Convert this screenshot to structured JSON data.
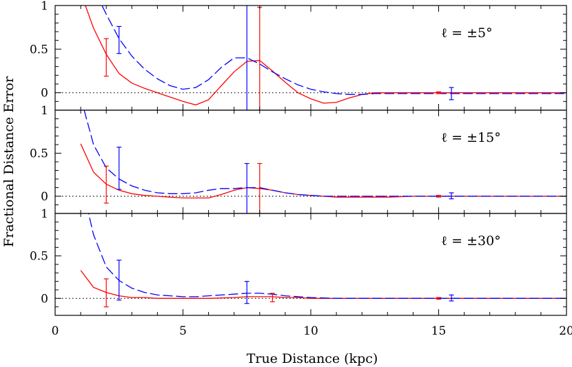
{
  "chart_data": {
    "type": "line",
    "xlabel": "True Distance (kpc)",
    "ylabel": "Fractional Distance Error",
    "xlim": [
      0,
      20
    ],
    "xticks": [
      0,
      5,
      10,
      15,
      20
    ],
    "ylim": [
      -0.2,
      1.0
    ],
    "yticks": [
      0,
      0.5,
      1
    ],
    "grid": false,
    "panels": [
      {
        "label": "ℓ = ±5°",
        "series": [
          {
            "color": "#ff0000",
            "style": "solid",
            "x": [
              1.0,
              1.5,
              2.0,
              2.5,
              3.0,
              3.5,
              4.0,
              4.5,
              5.0,
              5.5,
              6.0,
              6.5,
              7.0,
              7.5,
              8.0,
              8.5,
              9.0,
              9.5,
              10.0,
              10.5,
              11.0,
              11.5,
              12.0,
              12.5,
              13.0,
              14.0,
              15.0,
              16.0,
              17.0,
              18.0,
              19.0,
              20.0
            ],
            "y": [
              1.15,
              0.74,
              0.44,
              0.22,
              0.11,
              0.05,
              0.0,
              -0.05,
              -0.1,
              -0.14,
              -0.08,
              0.08,
              0.24,
              0.36,
              0.37,
              0.25,
              0.12,
              0.0,
              -0.07,
              -0.12,
              -0.11,
              -0.06,
              -0.02,
              0.0,
              0.0,
              0.0,
              0.0,
              0.0,
              0.0,
              0.0,
              0.0,
              0.0
            ]
          },
          {
            "color": "#0000ff",
            "style": "dashed",
            "x": [
              1.0,
              1.5,
              2.0,
              2.5,
              3.0,
              3.5,
              4.0,
              4.5,
              5.0,
              5.5,
              6.0,
              6.5,
              7.0,
              7.5,
              8.0,
              8.5,
              9.0,
              9.5,
              10.0,
              10.5,
              11.0,
              11.5,
              12.0,
              12.5,
              13.0,
              14.0,
              15.0,
              16.0,
              17.0,
              18.0,
              19.0,
              20.0
            ],
            "y": [
              1.7,
              1.2,
              0.9,
              0.62,
              0.42,
              0.27,
              0.16,
              0.08,
              0.04,
              0.06,
              0.15,
              0.29,
              0.4,
              0.4,
              0.33,
              0.24,
              0.16,
              0.09,
              0.04,
              0.01,
              -0.01,
              -0.02,
              -0.02,
              -0.01,
              -0.01,
              -0.01,
              -0.01,
              -0.01,
              -0.01,
              -0.01,
              -0.01,
              -0.01
            ]
          }
        ],
        "error_bars": [
          {
            "color": "#ff0000",
            "x": 2.0,
            "y": 0.41,
            "low": 0.19,
            "high": 0.62
          },
          {
            "color": "#0000ff",
            "x": 2.5,
            "y": 0.62,
            "low": 0.45,
            "high": 0.76
          },
          {
            "color": "#0000ff",
            "x": 7.5,
            "y": 0.4,
            "low": -0.2,
            "high": 1.0
          },
          {
            "color": "#ff0000",
            "x": 8.0,
            "y": 0.37,
            "low": -0.2,
            "high": 0.98
          },
          {
            "color": "#ff0000",
            "x": 15.0,
            "y": 0.0,
            "low": -0.01,
            "high": 0.01
          },
          {
            "color": "#0000ff",
            "x": 15.5,
            "y": -0.01,
            "low": -0.08,
            "high": 0.06
          }
        ]
      },
      {
        "label": "ℓ = ±15°",
        "series": [
          {
            "color": "#ff0000",
            "style": "solid",
            "x": [
              1.0,
              1.5,
              2.0,
              2.5,
              3.0,
              3.5,
              4.0,
              4.5,
              5.0,
              5.5,
              6.0,
              6.5,
              7.0,
              7.5,
              8.0,
              8.5,
              9.0,
              9.5,
              10.0,
              10.5,
              11.0,
              12.0,
              13.0,
              14.0,
              15.0,
              16.0,
              17.0,
              18.0,
              19.0,
              20.0
            ],
            "y": [
              0.61,
              0.28,
              0.14,
              0.07,
              0.03,
              0.01,
              0.0,
              -0.01,
              -0.02,
              -0.02,
              -0.02,
              0.02,
              0.07,
              0.1,
              0.09,
              0.07,
              0.04,
              0.02,
              0.01,
              0.0,
              -0.01,
              -0.01,
              -0.01,
              0.0,
              0.0,
              0.0,
              0.0,
              0.0,
              0.0,
              0.0
            ]
          },
          {
            "color": "#0000ff",
            "style": "dashed",
            "x": [
              1.0,
              1.5,
              2.0,
              2.5,
              3.0,
              3.5,
              4.0,
              4.5,
              5.0,
              5.5,
              6.0,
              6.5,
              7.0,
              7.5,
              8.0,
              8.5,
              9.0,
              9.5,
              10.0,
              10.5,
              11.0,
              12.0,
              13.0,
              14.0,
              15.0,
              16.0,
              17.0,
              18.0,
              19.0,
              20.0
            ],
            "y": [
              1.15,
              0.6,
              0.33,
              0.2,
              0.12,
              0.07,
              0.04,
              0.03,
              0.03,
              0.04,
              0.07,
              0.09,
              0.09,
              0.1,
              0.1,
              0.07,
              0.04,
              0.02,
              0.01,
              0.0,
              0.0,
              0.0,
              0.0,
              0.0,
              0.0,
              0.0,
              0.0,
              0.0,
              0.0,
              0.0
            ]
          }
        ],
        "error_bars": [
          {
            "color": "#ff0000",
            "x": 2.0,
            "y": 0.13,
            "low": -0.08,
            "high": 0.35
          },
          {
            "color": "#0000ff",
            "x": 2.5,
            "y": 0.32,
            "low": 0.08,
            "high": 0.57
          },
          {
            "color": "#0000ff",
            "x": 7.5,
            "y": 0.1,
            "low": -0.2,
            "high": 0.38
          },
          {
            "color": "#ff0000",
            "x": 8.0,
            "y": 0.09,
            "low": -0.2,
            "high": 0.38
          },
          {
            "color": "#ff0000",
            "x": 15.0,
            "y": 0.0,
            "low": -0.01,
            "high": 0.01
          },
          {
            "color": "#0000ff",
            "x": 15.5,
            "y": 0.0,
            "low": -0.03,
            "high": 0.04
          }
        ]
      },
      {
        "label": "ℓ = ±30°",
        "series": [
          {
            "color": "#ff0000",
            "style": "solid",
            "x": [
              1.0,
              1.5,
              2.0,
              2.5,
              3.0,
              3.5,
              4.0,
              4.5,
              5.0,
              6.0,
              7.0,
              7.5,
              8.0,
              8.5,
              9.0,
              9.5,
              10.0,
              11.0,
              12.0,
              13.0,
              14.0,
              15.0,
              16.0,
              17.0,
              18.0,
              19.0,
              20.0
            ],
            "y": [
              0.33,
              0.13,
              0.07,
              0.03,
              0.01,
              0.01,
              0.0,
              0.0,
              0.0,
              0.0,
              0.01,
              0.02,
              0.02,
              0.02,
              0.01,
              0.01,
              0.0,
              0.0,
              0.0,
              0.0,
              0.0,
              0.0,
              0.0,
              0.0,
              0.0,
              0.0,
              0.0
            ]
          },
          {
            "color": "#0000ff",
            "style": "dashed",
            "x": [
              1.0,
              1.5,
              2.0,
              2.5,
              3.0,
              3.5,
              4.0,
              4.5,
              5.0,
              5.5,
              6.0,
              6.5,
              7.0,
              7.5,
              8.0,
              8.5,
              9.0,
              9.5,
              10.0,
              11.0,
              12.0,
              13.0,
              14.0,
              15.0,
              16.0,
              17.0,
              18.0,
              19.0,
              20.0
            ],
            "y": [
              1.4,
              0.75,
              0.37,
              0.21,
              0.12,
              0.07,
              0.04,
              0.03,
              0.02,
              0.02,
              0.03,
              0.04,
              0.05,
              0.06,
              0.06,
              0.05,
              0.03,
              0.02,
              0.01,
              0.0,
              0.0,
              0.0,
              0.0,
              0.0,
              0.0,
              0.0,
              0.0,
              0.0,
              0.0
            ]
          }
        ],
        "error_bars": [
          {
            "color": "#ff0000",
            "x": 2.0,
            "y": 0.07,
            "low": -0.1,
            "high": 0.23
          },
          {
            "color": "#0000ff",
            "x": 2.5,
            "y": 0.21,
            "low": -0.02,
            "high": 0.45
          },
          {
            "color": "#0000ff",
            "x": 7.5,
            "y": 0.06,
            "low": -0.06,
            "high": 0.2
          },
          {
            "color": "#ff0000",
            "x": 8.5,
            "y": 0.02,
            "low": -0.04,
            "high": 0.06
          },
          {
            "color": "#ff0000",
            "x": 15.0,
            "y": 0.0,
            "low": -0.01,
            "high": 0.01
          },
          {
            "color": "#0000ff",
            "x": 15.5,
            "y": 0.0,
            "low": -0.03,
            "high": 0.04
          }
        ]
      }
    ]
  }
}
